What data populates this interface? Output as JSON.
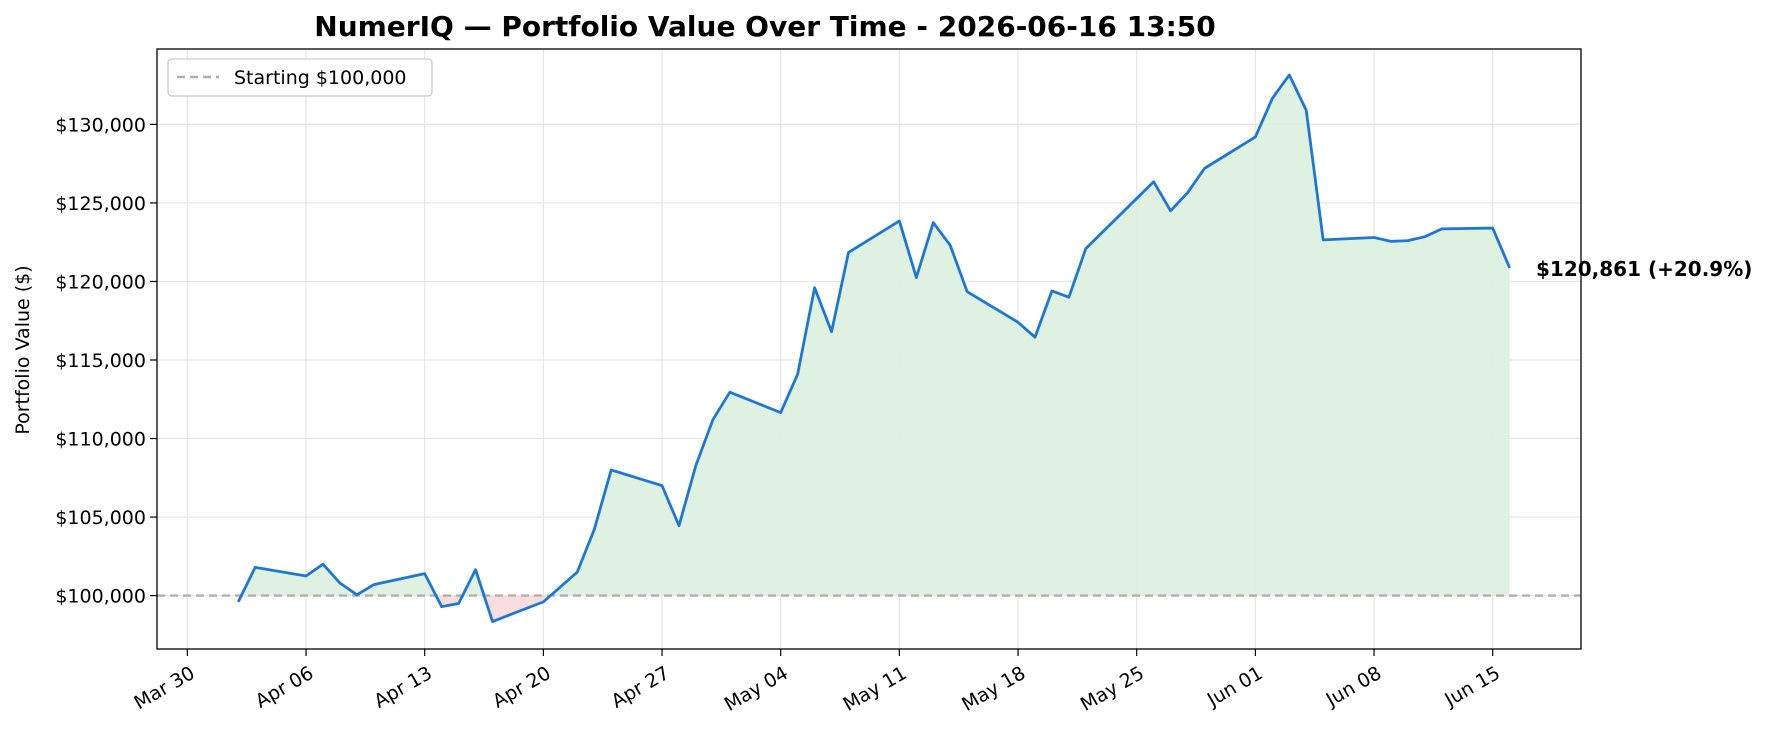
{
  "chart_data": {
    "type": "line",
    "title": "NumerIQ — Portfolio Value Over Time - 2026-06-16 13:50",
    "xlabel": "",
    "ylabel": "Portfolio Value ($)",
    "x_ticks": [
      "2026-03-30",
      "2026-04-06",
      "2026-04-13",
      "2026-04-20",
      "2026-04-27",
      "2026-05-04",
      "2026-05-11",
      "2026-05-18",
      "2026-05-25",
      "2026-06-01",
      "2026-06-08",
      "2026-06-15"
    ],
    "x_tick_labels": [
      "Mar 30",
      "Apr 06",
      "Apr 13",
      "Apr 20",
      "Apr 27",
      "May 04",
      "May 11",
      "May 18",
      "May 25",
      "Jun 01",
      "Jun 08",
      "Jun 15"
    ],
    "y_ticks": [
      100000,
      105000,
      110000,
      115000,
      120000,
      125000,
      130000
    ],
    "y_tick_labels": [
      "$100,000",
      "$105,000",
      "$110,000",
      "$115,000",
      "$120,000",
      "$125,000",
      "$130,000"
    ],
    "xlim": [
      "2026-03-28T05:00",
      "2026-06-20T05:00"
    ],
    "ylim": [
      96600,
      134800
    ],
    "grid": true,
    "legend": {
      "position": "top-left",
      "entries": [
        "Starting $100,000"
      ]
    },
    "baseline": {
      "value": 100000,
      "label": "Starting $100,000",
      "color": "#b0b0b0",
      "style": "dashed"
    },
    "series": [
      {
        "color": "#1f77d4",
        "fill_above_baseline": "#dcefdd",
        "fill_below_baseline": "#f9d9d9",
        "points": [
          [
            "2026-04-02",
            99600
          ],
          [
            "2026-04-03",
            101800
          ],
          [
            "2026-04-06",
            101250
          ],
          [
            "2026-04-07",
            102000
          ],
          [
            "2026-04-08",
            100800
          ],
          [
            "2026-04-09",
            100050
          ],
          [
            "2026-04-10",
            100700
          ],
          [
            "2026-04-13",
            101400
          ],
          [
            "2026-04-14",
            99300
          ],
          [
            "2026-04-15",
            99500
          ],
          [
            "2026-04-16",
            101650
          ],
          [
            "2026-04-17",
            98350
          ],
          [
            "2026-04-20",
            99600
          ],
          [
            "2026-04-22",
            101500
          ],
          [
            "2026-04-23",
            104200
          ],
          [
            "2026-04-24",
            108000
          ],
          [
            "2026-04-27",
            107000
          ],
          [
            "2026-04-28",
            104450
          ],
          [
            "2026-04-29",
            108300
          ],
          [
            "2026-04-30",
            111200
          ],
          [
            "2026-05-01",
            112950
          ],
          [
            "2026-05-04",
            111650
          ],
          [
            "2026-05-05",
            114100
          ],
          [
            "2026-05-06",
            119600
          ],
          [
            "2026-05-07",
            116800
          ],
          [
            "2026-05-08",
            121850
          ],
          [
            "2026-05-11",
            123850
          ],
          [
            "2026-05-12",
            120250
          ],
          [
            "2026-05-13",
            123750
          ],
          [
            "2026-05-14",
            122300
          ],
          [
            "2026-05-15",
            119350
          ],
          [
            "2026-05-18",
            117400
          ],
          [
            "2026-05-19",
            116450
          ],
          [
            "2026-05-20",
            119400
          ],
          [
            "2026-05-21",
            119000
          ],
          [
            "2026-05-22",
            122100
          ],
          [
            "2026-05-26",
            126350
          ],
          [
            "2026-05-27",
            124500
          ],
          [
            "2026-05-28",
            125650
          ],
          [
            "2026-05-29",
            127200
          ],
          [
            "2026-06-01",
            129200
          ],
          [
            "2026-06-02",
            131650
          ],
          [
            "2026-06-03",
            133150
          ],
          [
            "2026-06-04",
            130900
          ],
          [
            "2026-06-05",
            122650
          ],
          [
            "2026-06-08",
            122800
          ],
          [
            "2026-06-09",
            122550
          ],
          [
            "2026-06-10",
            122600
          ],
          [
            "2026-06-11",
            122850
          ],
          [
            "2026-06-12",
            123350
          ],
          [
            "2026-06-15",
            123400
          ],
          [
            "2026-06-16",
            120861
          ]
        ]
      }
    ],
    "annotations": [
      {
        "text": "$120,861  (+20.9%)",
        "x": "2026-06-16",
        "y": 120861
      }
    ]
  }
}
